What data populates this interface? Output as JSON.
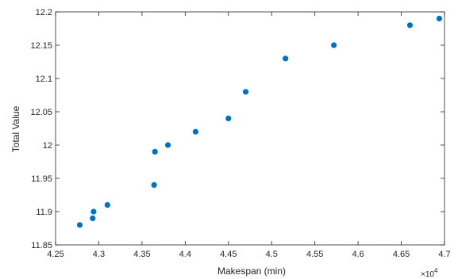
{
  "chart_data": {
    "type": "scatter",
    "title": "",
    "xlabel": "Makespan (min)",
    "ylabel": "Total Value",
    "x_exponent_label": "×10",
    "x_exponent_power": "4",
    "xlim": [
      42500,
      47000
    ],
    "ylim": [
      11.85,
      12.2
    ],
    "x_ticks": [
      42500,
      43000,
      43500,
      44000,
      44500,
      45000,
      45500,
      46000,
      46500,
      47000
    ],
    "x_tick_labels": [
      "4.25",
      "4.3",
      "4.35",
      "4.4",
      "4.45",
      "4.5",
      "4.55",
      "4.6",
      "4.65",
      "4.7"
    ],
    "y_ticks": [
      11.85,
      11.9,
      11.95,
      12.0,
      12.05,
      12.1,
      12.15,
      12.2
    ],
    "y_tick_labels": [
      "11.85",
      "11.9",
      "11.95",
      "12",
      "12.05",
      "12.1",
      "12.15",
      "12.2"
    ],
    "grid": false,
    "marker_color": "#0072BD",
    "points": [
      {
        "x": 42780,
        "y": 11.88
      },
      {
        "x": 42930,
        "y": 11.89
      },
      {
        "x": 42940,
        "y": 11.9
      },
      {
        "x": 43100,
        "y": 11.91
      },
      {
        "x": 43640,
        "y": 11.94
      },
      {
        "x": 43650,
        "y": 11.99
      },
      {
        "x": 43800,
        "y": 12.0
      },
      {
        "x": 44120,
        "y": 12.02
      },
      {
        "x": 44500,
        "y": 12.04
      },
      {
        "x": 44700,
        "y": 12.08
      },
      {
        "x": 45160,
        "y": 12.13
      },
      {
        "x": 45720,
        "y": 12.15
      },
      {
        "x": 46600,
        "y": 12.18
      },
      {
        "x": 46940,
        "y": 12.19
      }
    ]
  }
}
